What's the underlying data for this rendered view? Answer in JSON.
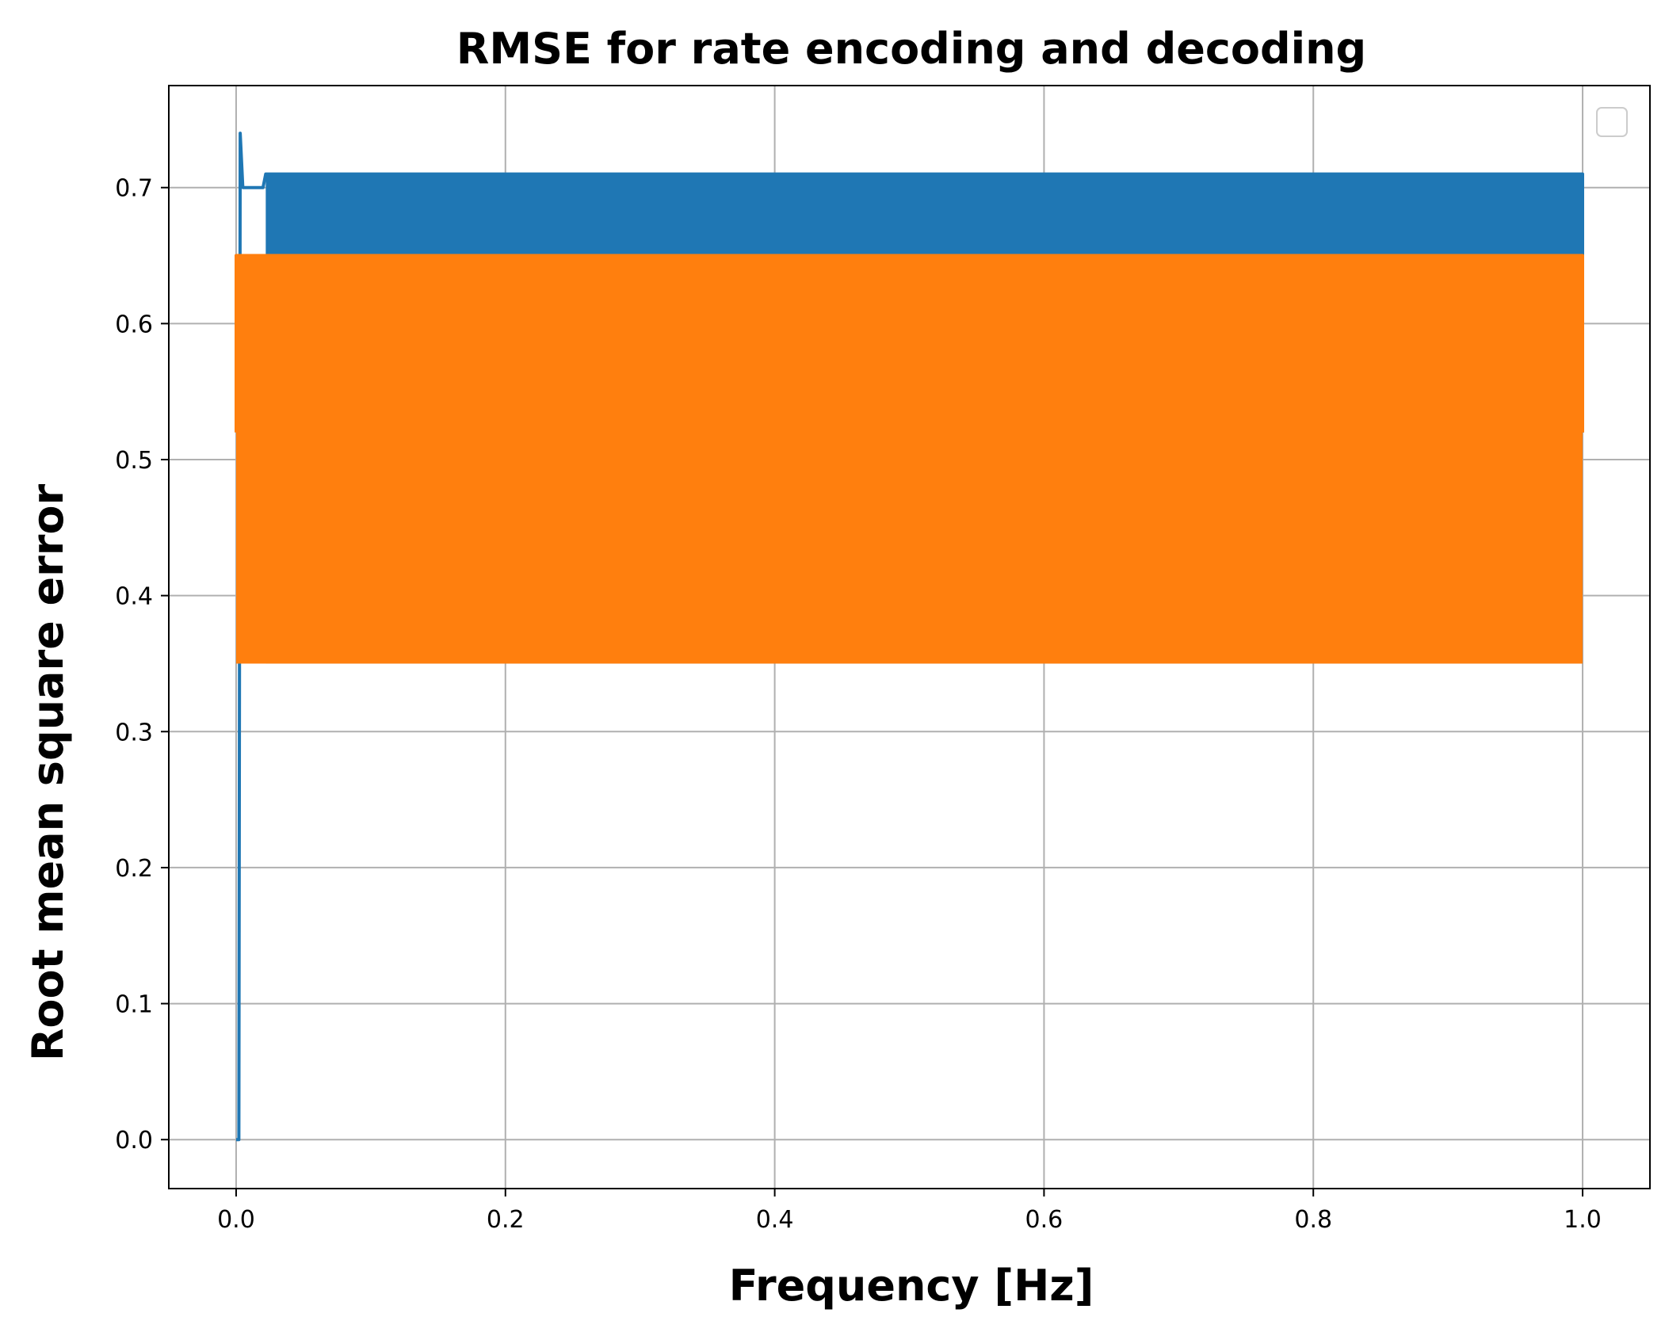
{
  "chart_data": {
    "type": "line",
    "title": "RMSE for rate encoding and decoding",
    "xlabel": "Frequency [Hz]",
    "ylabel": "Root mean square error",
    "xlim": [
      -0.05,
      1.05
    ],
    "ylim": [
      -0.036,
      0.775
    ],
    "x_ticks": [
      0.0,
      0.2,
      0.4,
      0.6,
      0.8,
      1.0
    ],
    "x_tick_labels": [
      "0.0",
      "0.2",
      "0.4",
      "0.6",
      "0.8",
      "1.0"
    ],
    "y_ticks": [
      0.0,
      0.1,
      0.2,
      0.3,
      0.4,
      0.5,
      0.6,
      0.7
    ],
    "y_tick_labels": [
      "0.0",
      "0.1",
      "0.2",
      "0.3",
      "0.4",
      "0.5",
      "0.6",
      "0.7"
    ],
    "grid": true,
    "legend": {
      "placement": "top-right",
      "entries": []
    },
    "series": [
      {
        "color": "#1f77b4",
        "description": "rises from 0 to ~0.74 near 0.003 Hz, then oscillates densely between ~0.35 and ~0.71 up to 1.0 Hz",
        "points": [
          [
            0.0,
            0.0
          ],
          [
            0.002,
            0.0
          ],
          [
            0.003,
            0.74
          ],
          [
            0.005,
            0.7
          ],
          [
            0.02,
            0.7
          ],
          [
            0.022,
            0.71
          ],
          [
            1.0,
            0.71
          ],
          [
            1.0,
            0.52
          ]
        ],
        "band": {
          "x_start": 0.022,
          "x_end": 1.0,
          "low": 0.35,
          "high": 0.71
        }
      },
      {
        "color": "#ff7f0e",
        "description": "oscillates densely between ~0.35 and ~0.65 across 0.0 to 1.0 Hz",
        "points": [
          [
            0.0,
            0.52
          ],
          [
            0.0,
            0.65
          ],
          [
            1.0,
            0.65
          ],
          [
            1.0,
            0.52
          ]
        ],
        "band": {
          "x_start": 0.0,
          "x_end": 1.0,
          "low": 0.35,
          "high": 0.65
        }
      }
    ]
  }
}
